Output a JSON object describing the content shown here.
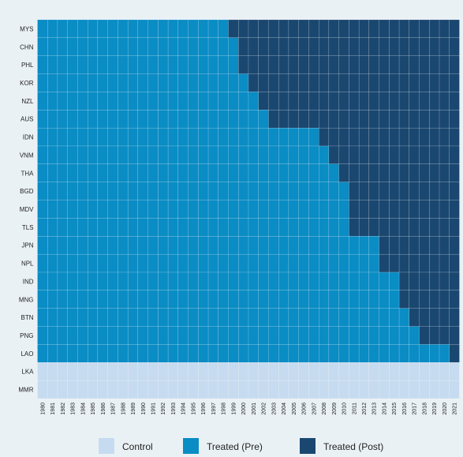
{
  "chart_data": {
    "type": "heatmap",
    "title": "",
    "xlabel": "",
    "ylabel": "",
    "years": [
      1980,
      1981,
      1982,
      1983,
      1984,
      1985,
      1986,
      1987,
      1988,
      1989,
      1990,
      1991,
      1992,
      1993,
      1994,
      1995,
      1996,
      1997,
      1998,
      1999,
      2000,
      2001,
      2002,
      2003,
      2004,
      2005,
      2006,
      2007,
      2008,
      2009,
      2010,
      2011,
      2012,
      2013,
      2014,
      2015,
      2016,
      2017,
      2018,
      2019,
      2020,
      2021
    ],
    "countries": [
      {
        "code": "MYS",
        "group": "treated",
        "treat_start": 1999
      },
      {
        "code": "CHN",
        "group": "treated",
        "treat_start": 2000
      },
      {
        "code": "PHL",
        "group": "treated",
        "treat_start": 2000
      },
      {
        "code": "KOR",
        "group": "treated",
        "treat_start": 2001
      },
      {
        "code": "NZL",
        "group": "treated",
        "treat_start": 2002
      },
      {
        "code": "AUS",
        "group": "treated",
        "treat_start": 2003
      },
      {
        "code": "IDN",
        "group": "treated",
        "treat_start": 2008
      },
      {
        "code": "VNM",
        "group": "treated",
        "treat_start": 2009
      },
      {
        "code": "THA",
        "group": "treated",
        "treat_start": 2010
      },
      {
        "code": "BGD",
        "group": "treated",
        "treat_start": 2011
      },
      {
        "code": "MDV",
        "group": "treated",
        "treat_start": 2011
      },
      {
        "code": "TLS",
        "group": "treated",
        "treat_start": 2011
      },
      {
        "code": "JPN",
        "group": "treated",
        "treat_start": 2014
      },
      {
        "code": "NPL",
        "group": "treated",
        "treat_start": 2014
      },
      {
        "code": "IND",
        "group": "treated",
        "treat_start": 2016
      },
      {
        "code": "MNG",
        "group": "treated",
        "treat_start": 2016
      },
      {
        "code": "BTN",
        "group": "treated",
        "treat_start": 2017
      },
      {
        "code": "PNG",
        "group": "treated",
        "treat_start": 2018
      },
      {
        "code": "LAO",
        "group": "treated",
        "treat_start": 2021
      },
      {
        "code": "LKA",
        "group": "control",
        "treat_start": null
      },
      {
        "code": "MMR",
        "group": "control",
        "treat_start": null
      }
    ],
    "legend": [
      {
        "key": "control",
        "label": "Control",
        "color": "#c6dbef"
      },
      {
        "key": "pre",
        "label": "Treated (Pre)",
        "color": "#0a8cc4"
      },
      {
        "key": "post",
        "label": "Treated (Post)",
        "color": "#1a4770"
      }
    ],
    "legend_position": "bottom",
    "background_color": "#eaf1f5",
    "grid_line_color": "#ffffff"
  }
}
